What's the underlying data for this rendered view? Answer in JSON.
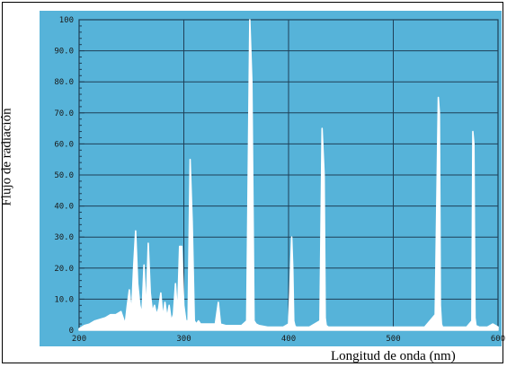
{
  "chart_data": {
    "type": "line",
    "xlabel": "Longitud de onda (nm)",
    "ylabel": "Flujo de radiación",
    "xlim": [
      200,
      600
    ],
    "ylim": [
      0,
      100
    ],
    "x_ticks": [
      200,
      300,
      400,
      500,
      600
    ],
    "x_tick_labels": [
      "200",
      "300",
      "400",
      "500",
      "600"
    ],
    "y_ticks": [
      0,
      10,
      20,
      30,
      40,
      50,
      60,
      70,
      80,
      90,
      100
    ],
    "y_tick_labels": [
      "0",
      "10.0",
      "20.0",
      "30.0",
      "40.0",
      "50.0",
      "60.0",
      "70.0",
      "80.0",
      "90.0",
      "100"
    ],
    "grid": true,
    "colors": {
      "background": "#56b3d9",
      "line": "#ffffff",
      "grid": "#1f3f57"
    },
    "series": [
      {
        "x": [
          200,
          205,
          210,
          215,
          220,
          225,
          230,
          235,
          240,
          244,
          246,
          248,
          250,
          252,
          254,
          256,
          258,
          260,
          262,
          264,
          266,
          268,
          270,
          272,
          274,
          276,
          278,
          280,
          282,
          284,
          286,
          288,
          290,
          292,
          294,
          296,
          298,
          300,
          302,
          304,
          306,
          308,
          310,
          312,
          314,
          316,
          320,
          325,
          330,
          333,
          335,
          340,
          345,
          350,
          355,
          360,
          363,
          365,
          367,
          369,
          372,
          380,
          390,
          395,
          400,
          403,
          404,
          405,
          406,
          407,
          410,
          420,
          430,
          432,
          434,
          435,
          436,
          438,
          445,
          455,
          460,
          470,
          480,
          490,
          500,
          510,
          520,
          530,
          540,
          543,
          544,
          545,
          546,
          547,
          550,
          560,
          570,
          575,
          576,
          577,
          578,
          579,
          582,
          590,
          595,
          600
        ],
        "y": [
          0.5,
          1.5,
          2,
          3,
          3.5,
          4,
          5,
          5,
          6,
          2,
          8,
          13,
          5,
          20,
          32,
          15,
          8,
          5,
          21,
          5,
          28,
          12,
          6,
          8,
          5,
          7,
          12,
          4,
          9,
          4,
          8,
          3,
          5,
          15,
          5,
          27,
          27,
          8,
          3,
          3,
          55,
          35,
          3,
          2,
          3,
          2,
          2,
          2,
          2,
          9,
          2,
          1.5,
          1.5,
          1.5,
          1.5,
          3,
          100,
          80,
          3,
          2,
          1.5,
          1,
          1,
          1,
          2,
          30,
          20,
          3,
          1.5,
          1,
          1,
          1,
          3,
          65,
          50,
          4,
          1.5,
          1,
          1,
          1,
          1,
          1,
          1,
          1,
          1,
          1,
          1,
          1,
          5,
          75,
          70,
          8,
          2,
          1,
          1,
          1,
          1,
          3,
          64,
          60,
          4,
          1.5,
          1,
          1,
          2,
          1
        ]
      }
    ]
  }
}
